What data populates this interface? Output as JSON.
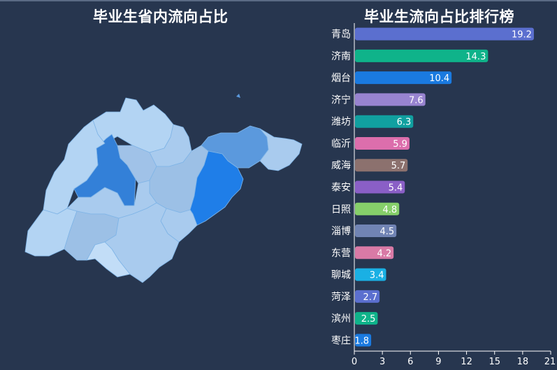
{
  "map_panel": {
    "title": "毕业生省内流向占比"
  },
  "bar_panel": {
    "title": "毕业生流向占比排行榜"
  },
  "chart_data": {
    "type": "bar",
    "orientation": "horizontal",
    "title": "毕业生流向占比排行榜",
    "categories": [
      "青岛",
      "济南",
      "烟台",
      "济宁",
      "潍坊",
      "临沂",
      "威海",
      "泰安",
      "日照",
      "淄博",
      "东营",
      "聊城",
      "菏泽",
      "滨州",
      "枣庄"
    ],
    "values": [
      19.2,
      14.3,
      10.4,
      7.6,
      6.3,
      5.9,
      5.7,
      5.4,
      4.8,
      4.5,
      4.2,
      3.4,
      2.7,
      2.5,
      1.8
    ],
    "value_labels": [
      "19.2",
      "14.3",
      "10.4",
      "7.6",
      "6.3",
      "5.9",
      "5.7",
      "5.4",
      "4.8",
      "4.5",
      "4.2",
      "3.4",
      "2.7",
      "2.5",
      "1.8"
    ],
    "colors": [
      "#5b6fcf",
      "#0fb38a",
      "#1a7ae0",
      "#9884d0",
      "#11a0a0",
      "#dc6eac",
      "#8c716e",
      "#8a5fc6",
      "#86cf6a",
      "#7184b4",
      "#d97aa6",
      "#1ab0e4",
      "#5b6fcf",
      "#0fb38a",
      "#1a7ae0"
    ],
    "xlim": [
      0,
      21
    ],
    "xticks": [
      "0",
      "3",
      "6",
      "9",
      "12",
      "15",
      "18",
      "21"
    ],
    "grid": false,
    "legend": "none"
  }
}
